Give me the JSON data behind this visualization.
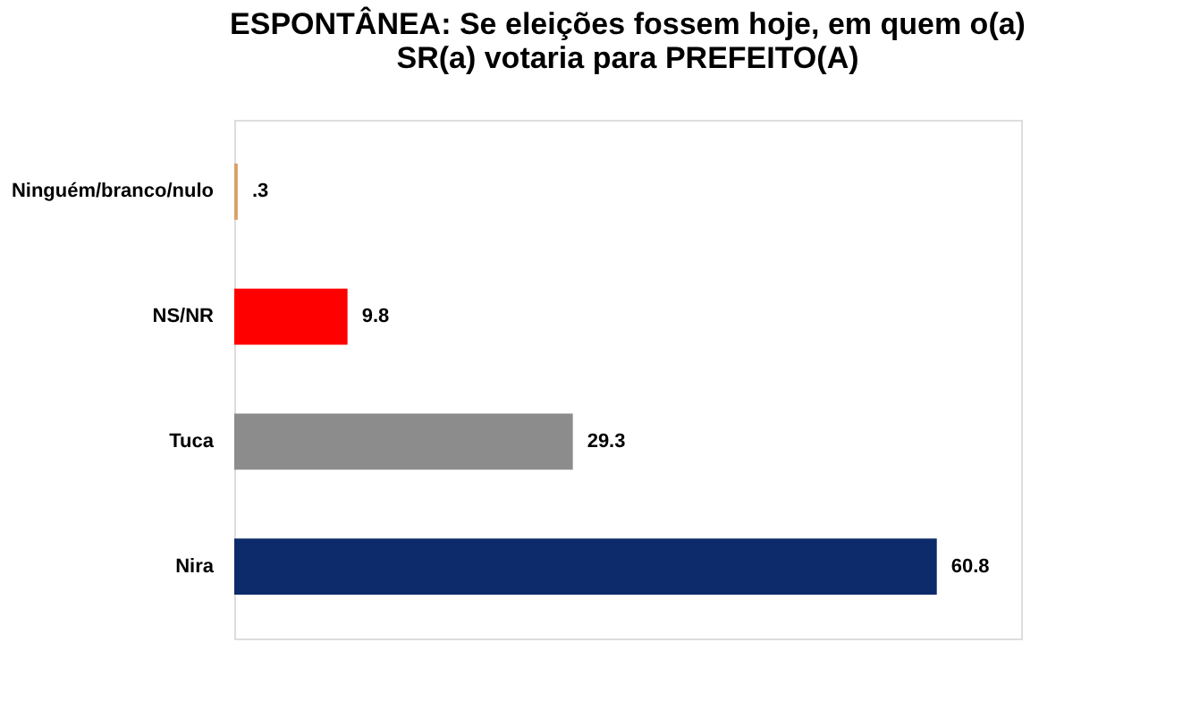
{
  "chart_data": {
    "type": "bar",
    "orientation": "horizontal",
    "title": [
      "ESPONTÂNEA: Se eleições fossem hoje, em quem o(a)",
      "SR(a) votaria para PREFEITO(A)"
    ],
    "categories": [
      "Ninguém/branco/nulo",
      "NS/NR",
      "Tuca",
      "Nira"
    ],
    "values": [
      0.3,
      9.8,
      29.3,
      60.8
    ],
    "colors": [
      "#d9a066",
      "#ff0000",
      "#8c8c8c",
      "#0d2a6b"
    ],
    "value_labels": [
      ".3",
      "9.8",
      "29.3",
      "60.8"
    ]
  }
}
